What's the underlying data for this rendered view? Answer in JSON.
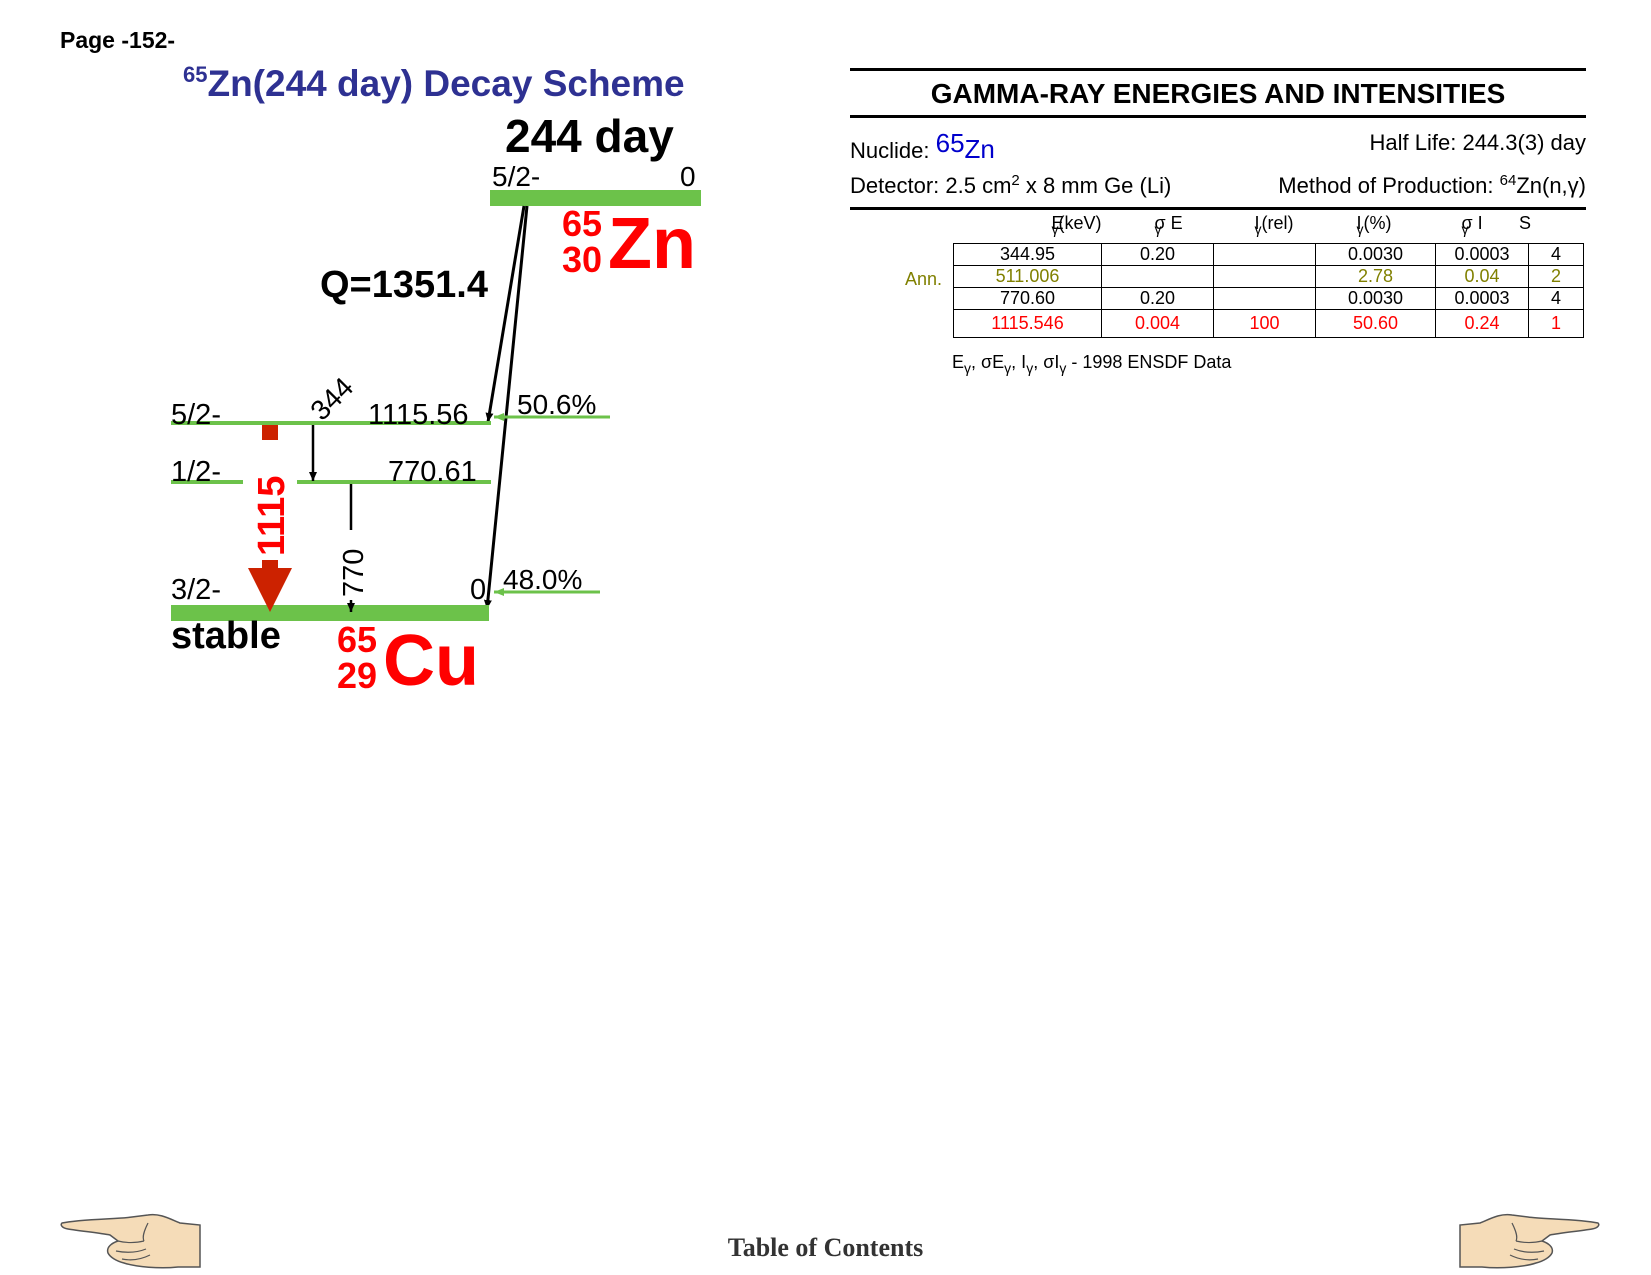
{
  "page": {
    "number": "Page -152-"
  },
  "scheme": {
    "title_mass": "65",
    "title_text": "Zn(244 day) Decay Scheme",
    "parent": {
      "half_life": "244 day",
      "spin": "5/2-",
      "energy": "0",
      "mass": "65",
      "z": "30",
      "symbol": "Zn"
    },
    "q_value": "Q=1351.4",
    "levels": [
      {
        "spin": "5/2-",
        "energy": "1115.56",
        "feeding": "50.6%"
      },
      {
        "spin": "1/2-",
        "energy": "770.61",
        "feeding": ""
      },
      {
        "spin": "3/2-",
        "energy": "0",
        "feeding": "48.0%"
      }
    ],
    "transitions": [
      {
        "label": "344"
      },
      {
        "label": "1115"
      },
      {
        "label": "770"
      }
    ],
    "daughter": {
      "stability": "stable",
      "mass": "65",
      "z": "29",
      "symbol": "Cu"
    }
  },
  "gamma": {
    "header": "GAMMA-RAY ENERGIES AND INTENSITIES",
    "nuclide_label": "Nuclide:",
    "nuclide_mass": "65",
    "nuclide_symbol": "Zn",
    "half_life": "Half Life: 244.3(3) day",
    "detector_prefix": "Detector: 2.5 cm",
    "detector_exp": "2",
    "detector_suffix": " x 8 mm Ge (Li)",
    "production_prefix": "Method of Production: ",
    "production_mass": "64",
    "production_reaction": "Zn(n,γ)",
    "columns": [
      "E",
      "(keV)",
      "σ E",
      "I",
      "(rel)",
      "I",
      "(%)",
      "σ I",
      "S"
    ],
    "rows": [
      {
        "energy": "344.95",
        "sigma_e": "0.20",
        "i_rel": "",
        "i_pct": "0.0030",
        "sigma_i": "0.0003",
        "s": "4"
      },
      {
        "energy": "511.006",
        "sigma_e": "",
        "i_rel": "",
        "i_pct": "2.78",
        "sigma_i": "0.04",
        "s": "2"
      },
      {
        "energy": "770.60",
        "sigma_e": "0.20",
        "i_rel": "",
        "i_pct": "0.0030",
        "sigma_i": "0.0003",
        "s": "4"
      },
      {
        "energy": "1115.546",
        "sigma_e": "0.004",
        "i_rel": "100",
        "i_pct": "50.60",
        "sigma_i": "0.24",
        "s": "1"
      }
    ],
    "ann_label": "Ann.",
    "footnote_source": "1998 ENSDF Data",
    "footnote_symbols": [
      "E",
      "σE",
      "I",
      "σI"
    ],
    "footnote_sub": "γ"
  },
  "footer": {
    "toc": "Table of Contents"
  },
  "colors": {
    "level_green": "#6cc24a",
    "title_blue": "#2e3192",
    "nuclide_red": "#ff0000",
    "arrow_red": "#cc2200"
  },
  "icons": {
    "prev": "pointing-hand-left-icon",
    "next": "pointing-hand-right-icon"
  }
}
